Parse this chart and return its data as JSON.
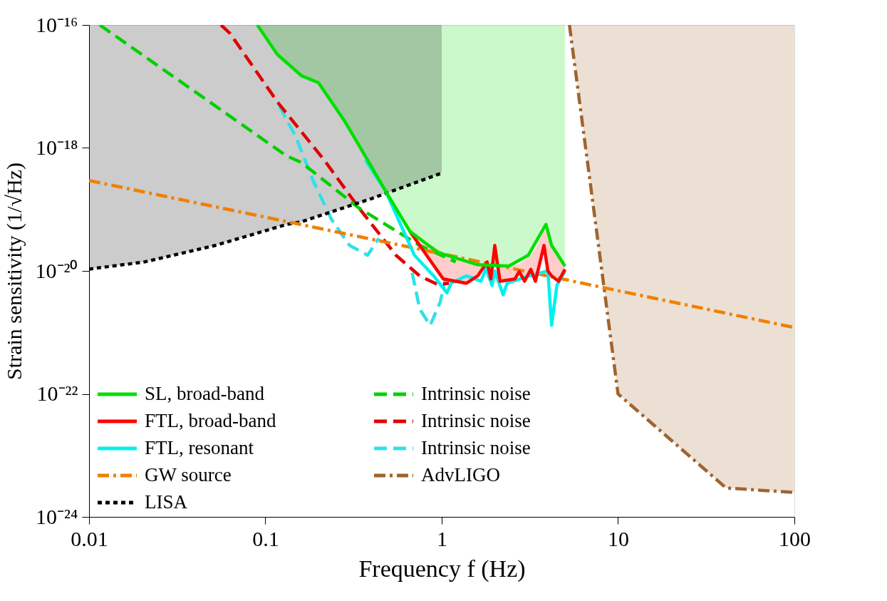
{
  "chart_data": {
    "type": "line",
    "xlabel": "Frequency f (Hz)",
    "ylabel": "Strain sensitivity (1/√Hz)",
    "log": "xy",
    "legend": "bottom left",
    "xlim": [
      0.01,
      100
    ],
    "ylim": [
      1e-24,
      1e-16
    ],
    "xticks": [
      0.01,
      0.1,
      1,
      10,
      100
    ],
    "yticks": [
      {
        "value": 1e-24,
        "label": "10⁻²⁴"
      },
      {
        "value": 1e-22,
        "label": "10⁻²²"
      },
      {
        "value": 1e-20,
        "label": "10⁻²⁰"
      },
      {
        "value": 1e-18,
        "label": "10⁻¹⁸"
      },
      {
        "value": 1e-16,
        "label": "10⁻¹⁶"
      }
    ],
    "series": [
      {
        "name": "SL, broad-band",
        "color": "#00e000",
        "line_style": "solid",
        "x": [
          0.09,
          0.117,
          0.16,
          0.2,
          0.28,
          0.356,
          0.48,
          0.66,
          0.95,
          1.6,
          2.4,
          3.1,
          3.9,
          4.2,
          5.0
        ],
        "values": [
          1e-16,
          3.3e-17,
          1.5e-17,
          1.15e-17,
          2.8e-18,
          8.7e-19,
          2e-19,
          4.4e-20,
          2e-20,
          1.26e-20,
          1.2e-20,
          1.8e-20,
          5.7e-20,
          2.6e-20,
          1.2e-20
        ],
        "lower": [
          1e-16,
          3.3e-17,
          1.5e-17,
          1.15e-17,
          2.8e-18,
          8.7e-19,
          2e-19,
          4.4e-20,
          2e-20,
          1.26e-20,
          1.2e-20,
          1.8e-20,
          5.7e-20,
          2.6e-20,
          1.2e-20
        ],
        "upper": [
          1e-16,
          1e-16,
          1e-16,
          1e-16,
          1e-16,
          1e-16,
          1e-16,
          1e-16,
          1e-16,
          1e-16,
          1e-16,
          1e-16,
          1e-16,
          1e-16,
          1e-16
        ]
      },
      {
        "name": "FTL, broad-band",
        "color": "#ff0000",
        "line_style": "solid",
        "x": [
          0.66,
          0.75,
          1.02,
          1.38,
          1.6,
          1.81,
          1.9,
          2.0,
          2.14,
          2.6,
          2.75,
          2.95,
          3.2,
          3.4,
          3.8,
          4.0,
          4.2,
          4.6,
          5.0
        ],
        "values": [
          4.4e-20,
          2.6e-20,
          7.4e-21,
          6.3e-21,
          8.3e-21,
          1.4e-20,
          7.4e-21,
          2.6e-20,
          6.8e-21,
          7.4e-21,
          9.8e-21,
          6.8e-21,
          1.06e-20,
          6.8e-21,
          2.6e-20,
          1e-20,
          8.3e-21,
          6.8e-21,
          1.06e-20
        ],
        "lower": [
          4.4e-20,
          2.6e-20,
          7.4e-21,
          6.3e-21,
          8.3e-21,
          1.4e-20,
          7.4e-21,
          2.6e-20,
          6.8e-21,
          7.4e-21,
          9.8e-21,
          6.8e-21,
          1.06e-20,
          6.8e-21,
          2.6e-20,
          1e-20,
          8.3e-21,
          6.8e-21,
          1.06e-20
        ],
        "upper": [
          4.4e-20,
          3.4e-20,
          2e-20,
          1.4e-20,
          1.26e-20,
          1.2e-20,
          1.2e-20,
          1.2e-20,
          1.2e-20,
          1.25e-20,
          1.3e-20,
          1.5e-20,
          1.8e-20,
          2.3e-20,
          4.5e-20,
          4.8e-20,
          2.6e-20,
          1.7e-20,
          1.2e-20
        ]
      },
      {
        "name": "FTL, resonant",
        "color": "#00f0f0",
        "line_style": "solid",
        "x": [
          0.37,
          0.48,
          0.7,
          0.9,
          1.07,
          1.13,
          1.38,
          1.67,
          1.78,
          1.93,
          2.0,
          2.23,
          2.35,
          3.0,
          4.0,
          4.2,
          4.5,
          5.0
        ],
        "values": [
          6.3e-19,
          2e-19,
          1.8e-20,
          8.3e-21,
          4.4e-21,
          6.3e-21,
          8.3e-21,
          6.8e-21,
          1.1e-20,
          5.8e-21,
          1e-20,
          4.1e-21,
          6.3e-21,
          8e-21,
          1e-20,
          1.3e-21,
          5.8e-21,
          1e-20
        ]
      },
      {
        "name": "GW source",
        "color": "#f08000",
        "line_style": "dashdot",
        "x": [
          0.01,
          1,
          100
        ],
        "values": [
          2.95e-19,
          1.9e-20,
          1.2e-21
        ]
      },
      {
        "name": "LISA",
        "color": "#000000",
        "line_style": "dotted",
        "x": [
          0.01,
          0.0206,
          0.052,
          0.132,
          0.16,
          0.4,
          1
        ],
        "values": [
          1.07e-20,
          1.4e-20,
          2.6e-20,
          5.7e-20,
          6.3e-20,
          1.5e-19,
          3.9e-19
        ],
        "lower": [
          1.07e-20,
          1.4e-20,
          2.6e-20,
          5.7e-20,
          6.3e-20,
          1.5e-19,
          3.9e-19
        ],
        "upper": [
          1e-16,
          1e-16,
          1e-16,
          1e-16,
          1e-16,
          1e-16,
          1e-16
        ]
      },
      {
        "name": "Intrinsic noise",
        "color": "#00d000",
        "line_style": "dashed",
        "x": [
          0.0115,
          0.132,
          0.16,
          0.34,
          0.75,
          1.2
        ],
        "values": [
          1e-16,
          7.4e-19,
          5.8e-19,
          1.05e-19,
          2.6e-20,
          1.4e-20
        ]
      },
      {
        "name": "Intrinsic noise",
        "color": "#e00000",
        "line_style": "dashed",
        "x": [
          0.056,
          0.063,
          0.117,
          0.216,
          0.34,
          0.55,
          0.75,
          0.95,
          1.1
        ],
        "values": [
          1e-16,
          7.3e-17,
          5.6e-18,
          6.3e-19,
          1.05e-19,
          1.8e-20,
          8.3e-21,
          6e-21,
          6.3e-21
        ]
      },
      {
        "name": "Intrinsic noise",
        "color": "#30e0e8",
        "line_style": "dashed",
        "x": [
          0.12,
          0.149,
          0.186,
          0.237,
          0.3,
          0.38,
          0.44,
          0.55,
          0.68,
          0.75,
          0.86,
          0.98,
          1.05
        ],
        "values": [
          4.8e-18,
          1.5e-18,
          3e-19,
          6.9e-20,
          2.6e-20,
          1.8e-20,
          3.4e-20,
          null,
          9.3e-21,
          2.4e-21,
          1.3e-21,
          3.1e-21,
          7.4e-21
        ]
      },
      {
        "name": "AdvLIGO",
        "color": "#a0642d",
        "line_style": "dashdot",
        "x": [
          5.3,
          10,
          41,
          100
        ],
        "values": [
          1e-16,
          1e-22,
          2.95e-24,
          2.5e-24
        ],
        "lower": [
          1e-16,
          1e-22,
          2.95e-24,
          2.5e-24
        ],
        "upper": [
          1e-16,
          1e-16,
          1e-16,
          1e-16
        ]
      }
    ]
  }
}
